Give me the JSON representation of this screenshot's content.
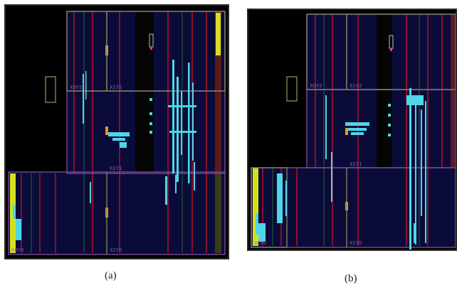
{
  "captions": {
    "a": "(a)",
    "b": "(b)"
  },
  "panels": {
    "a": {
      "regions": [
        "X0Y2",
        "X1Y2",
        "X1Y1",
        "X0Y0",
        "X1Y0"
      ]
    },
    "b": {
      "regions": [
        "X0Y2",
        "X1Y2",
        "X1Y1",
        "X0Y0",
        "X1Y0"
      ]
    }
  },
  "colors": {
    "background": "#000000",
    "fabric": "#0b0b3a",
    "pblock_border": "#8a8a5a",
    "region_border": "#7a4a9a",
    "placed_cells": "#4fd6e6",
    "clock_column": "#c8141e",
    "io_column": "#d4e01e",
    "marker": "#ff2aa0"
  }
}
